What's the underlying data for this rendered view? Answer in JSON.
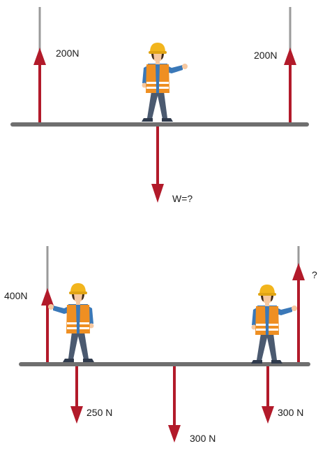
{
  "colors": {
    "beam": "#6f6f6f",
    "rope": "#9a9a9a",
    "force_arrow": "#b21a2a",
    "helmet": "#f2b51d",
    "vest": "#ef8f22",
    "vest_stripe": "#ffffff",
    "shirt": "#3a78b8",
    "trousers": "#4b5a70",
    "skin": "#f6c8a0",
    "hair": "#3d2a1a",
    "shoe": "#2f3a4c"
  },
  "scenario_1": {
    "left_support_force": "200N",
    "right_support_force": "200N",
    "weight_label": "W=?"
  },
  "scenario_2": {
    "left_support_force": "400N",
    "right_support_force": "?",
    "left_worker_weight": "250 N",
    "beam_weight": "300 N",
    "right_worker_weight": "300 N"
  }
}
